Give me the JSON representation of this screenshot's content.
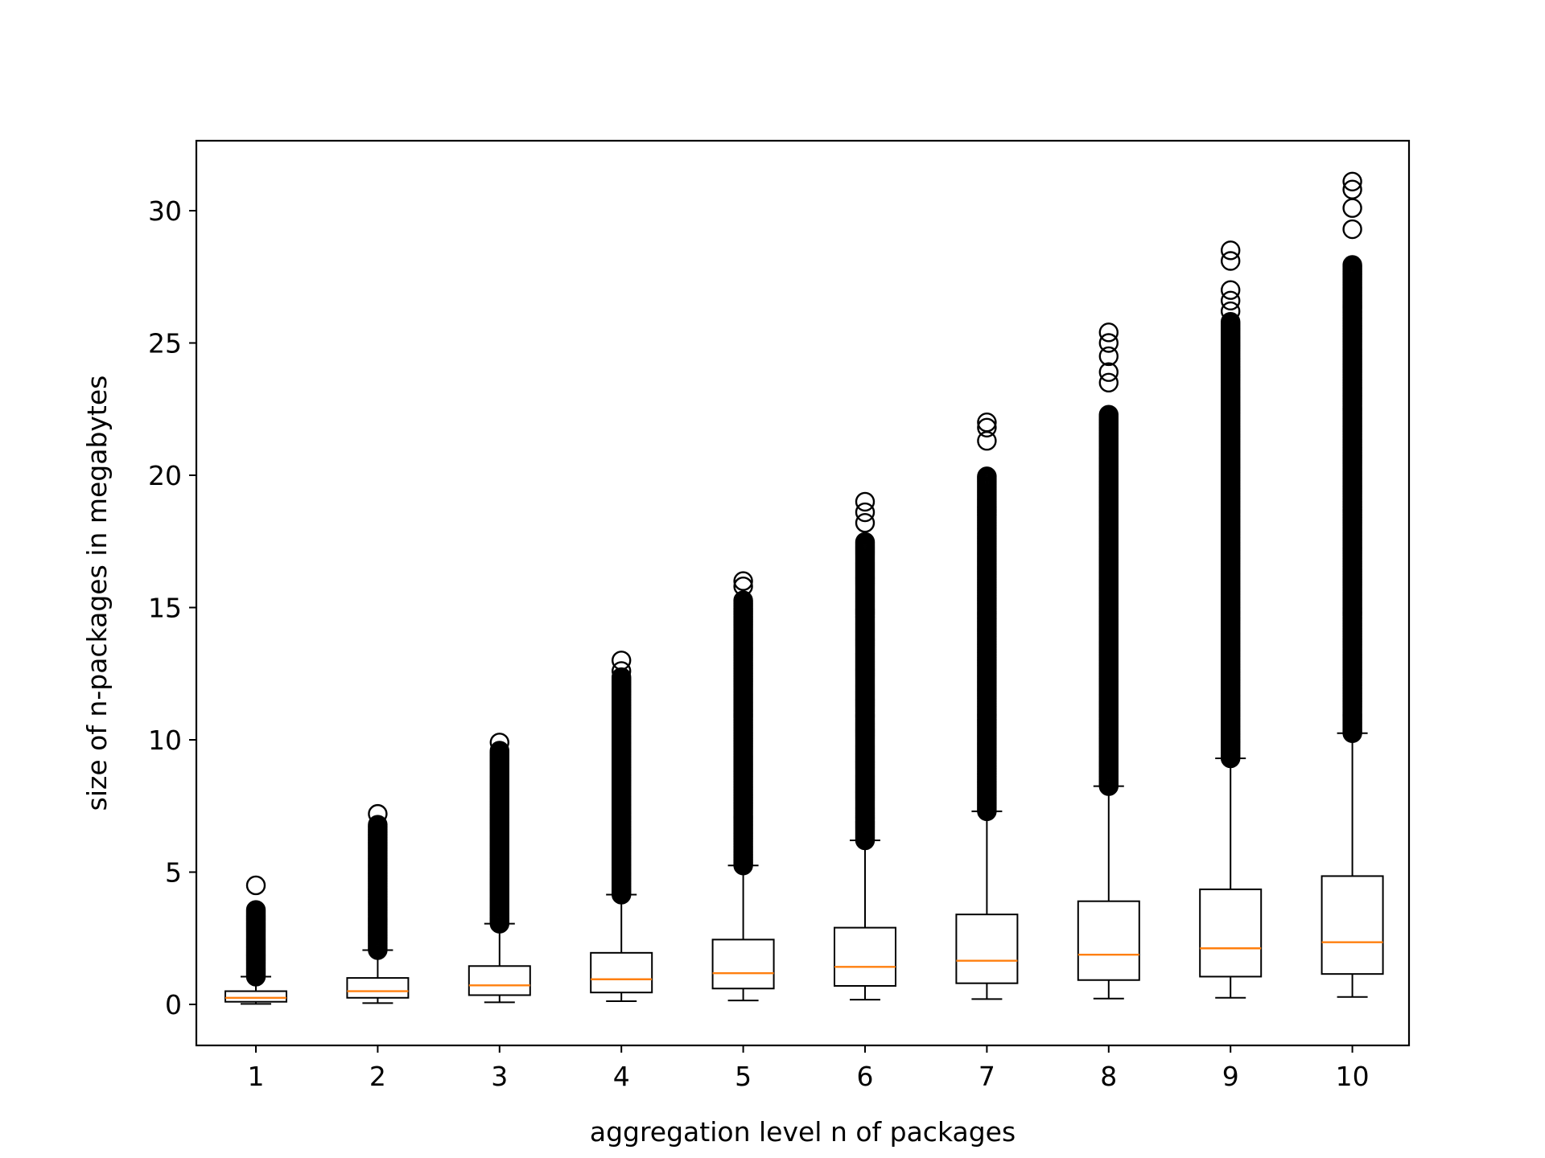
{
  "chart_data": {
    "type": "boxplot",
    "title": "",
    "xlabel": "aggregation level n of packages",
    "ylabel": "size of n-packages in megabytes",
    "categories": [
      "1",
      "2",
      "3",
      "4",
      "5",
      "6",
      "7",
      "8",
      "9",
      "10"
    ],
    "ylim": [
      -1.5,
      32.7
    ],
    "yticks": [
      0,
      5,
      10,
      15,
      20,
      25,
      30
    ],
    "grid": false,
    "colors": {
      "box": "#000000",
      "median": "#ff7f0e",
      "flier": "#000000",
      "background": "#ffffff"
    },
    "boxes": [
      {
        "category": "1",
        "whisker_low": 0.02,
        "q1": 0.1,
        "median": 0.25,
        "q3": 0.5,
        "whisker_high": 1.05,
        "flier_range": [
          1.05,
          3.6
        ],
        "outliers": [
          4.5
        ]
      },
      {
        "category": "2",
        "whisker_low": 0.05,
        "q1": 0.25,
        "median": 0.5,
        "q3": 1.0,
        "whisker_high": 2.05,
        "flier_range": [
          2.05,
          6.8
        ],
        "outliers": [
          7.2
        ]
      },
      {
        "category": "3",
        "whisker_low": 0.08,
        "q1": 0.35,
        "median": 0.72,
        "q3": 1.45,
        "whisker_high": 3.05,
        "flier_range": [
          3.05,
          9.6
        ],
        "outliers": [
          9.9
        ]
      },
      {
        "category": "4",
        "whisker_low": 0.12,
        "q1": 0.45,
        "median": 0.95,
        "q3": 1.95,
        "whisker_high": 4.15,
        "flier_range": [
          4.15,
          12.4
        ],
        "outliers": [
          12.6,
          13.0
        ]
      },
      {
        "category": "5",
        "whisker_low": 0.15,
        "q1": 0.6,
        "median": 1.18,
        "q3": 2.45,
        "whisker_high": 5.25,
        "flier_range": [
          5.25,
          15.3
        ],
        "outliers": [
          15.8,
          16.0
        ]
      },
      {
        "category": "6",
        "whisker_low": 0.18,
        "q1": 0.7,
        "median": 1.42,
        "q3": 2.9,
        "whisker_high": 6.2,
        "flier_range": [
          6.2,
          17.5
        ],
        "outliers": [
          18.2,
          18.6,
          19.0
        ]
      },
      {
        "category": "7",
        "whisker_low": 0.2,
        "q1": 0.8,
        "median": 1.65,
        "q3": 3.4,
        "whisker_high": 7.3,
        "flier_range": [
          7.3,
          20.0
        ],
        "outliers": [
          21.3,
          21.8,
          22.0
        ]
      },
      {
        "category": "8",
        "whisker_low": 0.22,
        "q1": 0.92,
        "median": 1.88,
        "q3": 3.9,
        "whisker_high": 8.25,
        "flier_range": [
          8.25,
          22.3
        ],
        "outliers": [
          23.5,
          23.9,
          24.5,
          25.0,
          25.4
        ]
      },
      {
        "category": "9",
        "whisker_low": 0.25,
        "q1": 1.05,
        "median": 2.12,
        "q3": 4.35,
        "whisker_high": 9.3,
        "flier_range": [
          9.3,
          25.8
        ],
        "outliers": [
          26.2,
          26.6,
          27.0,
          28.1,
          28.5
        ]
      },
      {
        "category": "10",
        "whisker_low": 0.28,
        "q1": 1.15,
        "median": 2.35,
        "q3": 4.85,
        "whisker_high": 10.25,
        "flier_range": [
          10.25,
          28.0
        ],
        "outliers": [
          29.3,
          30.1,
          30.8,
          31.1
        ]
      }
    ]
  }
}
